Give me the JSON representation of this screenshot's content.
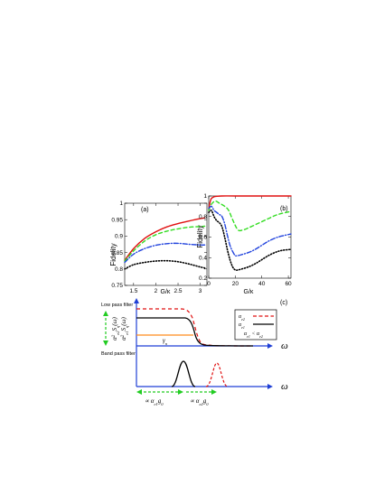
{
  "chart_data": [
    {
      "id": "a",
      "type": "line",
      "panel_label": "(a)",
      "xlabel": "G/κ",
      "ylabel": "Fidelity",
      "xlim": [
        1.3,
        3.15
      ],
      "ylim": [
        0.75,
        1.0
      ],
      "xticks": [
        1.5,
        2,
        2.5,
        3
      ],
      "xtick_labels": [
        "1.5",
        "2",
        "2.5",
        "3"
      ],
      "yticks": [
        0.75,
        0.8,
        0.85,
        0.9,
        0.95,
        1.0
      ],
      "ytick_labels": [
        "0.75",
        "0.8",
        "0.85",
        "0.9",
        "0.95",
        "1"
      ],
      "grid": false,
      "series": [
        {
          "style": "solid",
          "color": "#e01010",
          "x": [
            1.3,
            1.5,
            1.75,
            2.0,
            2.25,
            2.5,
            2.75,
            3.0,
            3.1
          ],
          "y": [
            0.826,
            0.862,
            0.893,
            0.913,
            0.928,
            0.938,
            0.946,
            0.953,
            0.955
          ]
        },
        {
          "style": "dashed",
          "color": "#33dd22",
          "x": [
            1.3,
            1.5,
            1.75,
            2.0,
            2.25,
            2.5,
            2.75,
            3.0,
            3.1
          ],
          "y": [
            0.824,
            0.855,
            0.885,
            0.904,
            0.915,
            0.922,
            0.927,
            0.929,
            0.93
          ]
        },
        {
          "style": "dashdot",
          "color": "#2244dd",
          "x": [
            1.3,
            1.5,
            1.75,
            2.0,
            2.25,
            2.5,
            2.75,
            3.0,
            3.1
          ],
          "y": [
            0.82,
            0.845,
            0.862,
            0.872,
            0.877,
            0.878,
            0.875,
            0.873,
            0.873
          ]
        },
        {
          "style": "dotted",
          "color": "#000000",
          "x": [
            1.3,
            1.5,
            1.75,
            2.0,
            2.25,
            2.5,
            2.75,
            3.0,
            3.1
          ],
          "y": [
            0.8,
            0.813,
            0.82,
            0.824,
            0.825,
            0.822,
            0.815,
            0.806,
            0.803
          ]
        }
      ]
    },
    {
      "id": "b",
      "type": "line",
      "panel_label": "(b)",
      "xlabel": "G/κ",
      "ylabel": "Fidelity",
      "xlim": [
        0,
        62
      ],
      "ylim": [
        0.2,
        1.0
      ],
      "xticks": [
        0,
        20,
        40,
        60
      ],
      "xtick_labels": [
        "0",
        "20",
        "40",
        "60"
      ],
      "yticks": [
        0.2,
        0.4,
        0.6,
        0.8,
        1.0
      ],
      "ytick_labels": [
        "0.2",
        "0.4",
        "0.6",
        "0.8",
        "1"
      ],
      "grid": false,
      "series": [
        {
          "style": "solid",
          "color": "#e01010",
          "x": [
            0,
            1,
            2,
            4,
            6,
            10,
            20,
            40,
            62
          ],
          "y": [
            0.87,
            0.94,
            0.975,
            0.992,
            0.997,
            1.0,
            1.0,
            1.0,
            1.0
          ]
        },
        {
          "style": "dashed",
          "color": "#33dd22",
          "x": [
            0,
            2,
            5,
            8,
            12,
            15,
            18,
            22,
            26,
            30,
            35,
            40,
            45,
            50,
            55,
            62
          ],
          "y": [
            0.86,
            0.92,
            0.95,
            0.93,
            0.9,
            0.86,
            0.77,
            0.67,
            0.67,
            0.69,
            0.72,
            0.75,
            0.78,
            0.81,
            0.83,
            0.85
          ]
        },
        {
          "style": "dashdot",
          "color": "#2244dd",
          "x": [
            0,
            2,
            4,
            6,
            8,
            10,
            12,
            14,
            16,
            18,
            20,
            22,
            25,
            30,
            35,
            40,
            45,
            50,
            55,
            62
          ],
          "y": [
            0.88,
            0.9,
            0.86,
            0.84,
            0.82,
            0.8,
            0.73,
            0.62,
            0.52,
            0.46,
            0.42,
            0.42,
            0.43,
            0.45,
            0.48,
            0.52,
            0.56,
            0.59,
            0.61,
            0.63
          ]
        },
        {
          "style": "dotted",
          "color": "#000000",
          "x": [
            0,
            2,
            4,
            6,
            8,
            10,
            12,
            14,
            16,
            18,
            20,
            22,
            25,
            30,
            35,
            40,
            45,
            50,
            55,
            62
          ],
          "y": [
            0.84,
            0.86,
            0.8,
            0.76,
            0.74,
            0.7,
            0.6,
            0.48,
            0.38,
            0.31,
            0.28,
            0.28,
            0.29,
            0.31,
            0.34,
            0.38,
            0.42,
            0.45,
            0.47,
            0.48
          ]
        }
      ]
    }
  ],
  "diagram_c": {
    "panel_label": "(c)",
    "low_pass_label": "Low pass filter",
    "band_pass_label": "Band pass filter",
    "gamma_label": "γ",
    "gamma_subscript": "n",
    "omega_label": "ω",
    "y_label_top": "α²_{e2}S_{η}(ω)",
    "y_label_bottom": "α²_{e1}S_{η}(ω)",
    "legend": {
      "items": [
        {
          "label": "α_{e2}",
          "style": "dashed",
          "color": "#e01010"
        },
        {
          "label": "α_{e1}",
          "style": "solid",
          "color": "#000000"
        }
      ],
      "note": "α_{e1} < α_{e2}"
    },
    "arrow_label_1": "∝ α_{e1}g₀",
    "arrow_label_2": "∝ α_{e2}g₀",
    "colors": {
      "axis": "#1f3fd6",
      "arrow": "#22cc22",
      "gamma": "#ff8c1a",
      "red": "#e01010"
    }
  }
}
